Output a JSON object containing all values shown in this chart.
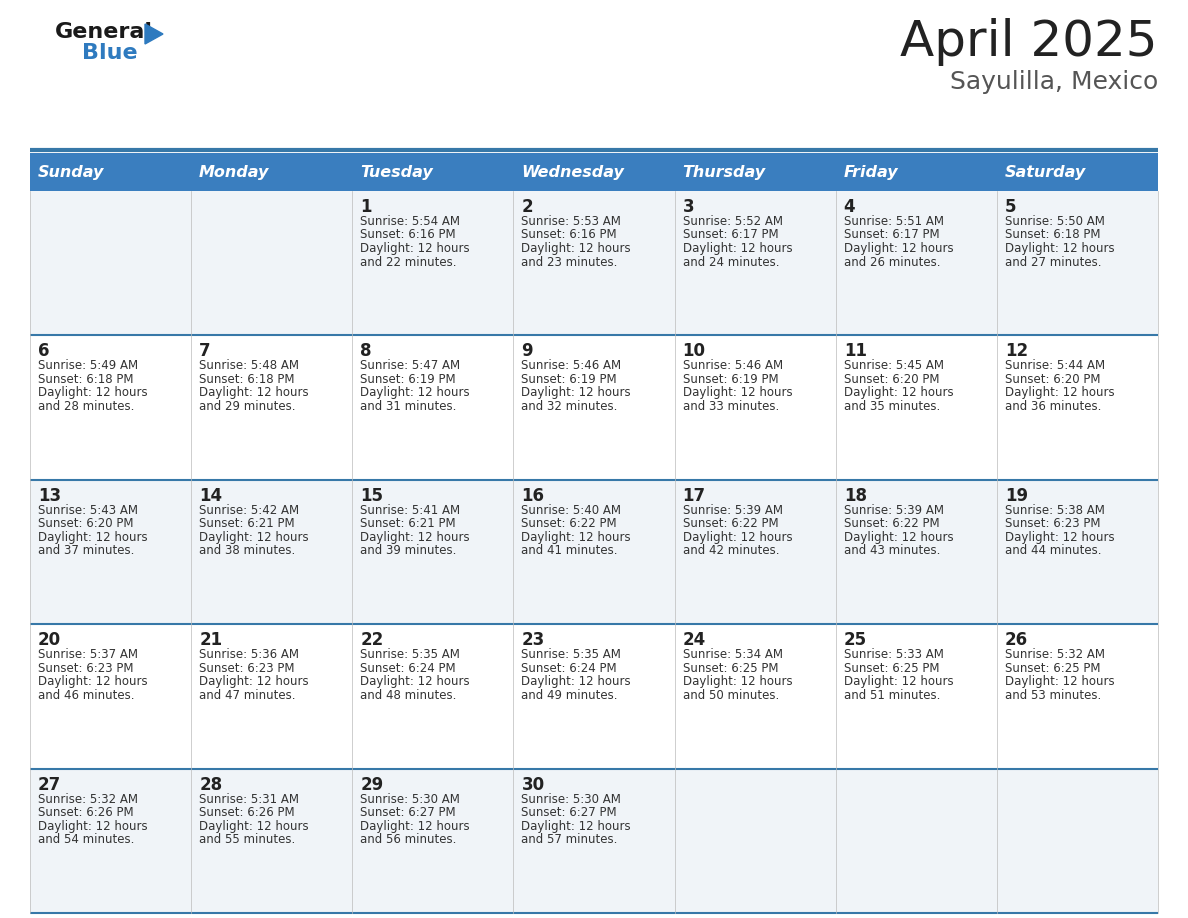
{
  "title": "April 2025",
  "subtitle": "Sayulilla, Mexico",
  "header_color": "#3a7ebf",
  "header_text_color": "#ffffff",
  "cell_bg_odd": "#f0f4f8",
  "cell_bg_even": "#ffffff",
  "separator_color": "#3778a8",
  "text_color": "#333333",
  "days_of_week": [
    "Sunday",
    "Monday",
    "Tuesday",
    "Wednesday",
    "Thursday",
    "Friday",
    "Saturday"
  ],
  "weeks": [
    [
      {
        "day": "",
        "sunrise": "",
        "sunset": "",
        "daylight_min": ""
      },
      {
        "day": "",
        "sunrise": "",
        "sunset": "",
        "daylight_min": ""
      },
      {
        "day": "1",
        "sunrise": "5:54 AM",
        "sunset": "6:16 PM",
        "daylight_min": "and 22 minutes."
      },
      {
        "day": "2",
        "sunrise": "5:53 AM",
        "sunset": "6:16 PM",
        "daylight_min": "and 23 minutes."
      },
      {
        "day": "3",
        "sunrise": "5:52 AM",
        "sunset": "6:17 PM",
        "daylight_min": "and 24 minutes."
      },
      {
        "day": "4",
        "sunrise": "5:51 AM",
        "sunset": "6:17 PM",
        "daylight_min": "and 26 minutes."
      },
      {
        "day": "5",
        "sunrise": "5:50 AM",
        "sunset": "6:18 PM",
        "daylight_min": "and 27 minutes."
      }
    ],
    [
      {
        "day": "6",
        "sunrise": "5:49 AM",
        "sunset": "6:18 PM",
        "daylight_min": "and 28 minutes."
      },
      {
        "day": "7",
        "sunrise": "5:48 AM",
        "sunset": "6:18 PM",
        "daylight_min": "and 29 minutes."
      },
      {
        "day": "8",
        "sunrise": "5:47 AM",
        "sunset": "6:19 PM",
        "daylight_min": "and 31 minutes."
      },
      {
        "day": "9",
        "sunrise": "5:46 AM",
        "sunset": "6:19 PM",
        "daylight_min": "and 32 minutes."
      },
      {
        "day": "10",
        "sunrise": "5:46 AM",
        "sunset": "6:19 PM",
        "daylight_min": "and 33 minutes."
      },
      {
        "day": "11",
        "sunrise": "5:45 AM",
        "sunset": "6:20 PM",
        "daylight_min": "and 35 minutes."
      },
      {
        "day": "12",
        "sunrise": "5:44 AM",
        "sunset": "6:20 PM",
        "daylight_min": "and 36 minutes."
      }
    ],
    [
      {
        "day": "13",
        "sunrise": "5:43 AM",
        "sunset": "6:20 PM",
        "daylight_min": "and 37 minutes."
      },
      {
        "day": "14",
        "sunrise": "5:42 AM",
        "sunset": "6:21 PM",
        "daylight_min": "and 38 minutes."
      },
      {
        "day": "15",
        "sunrise": "5:41 AM",
        "sunset": "6:21 PM",
        "daylight_min": "and 39 minutes."
      },
      {
        "day": "16",
        "sunrise": "5:40 AM",
        "sunset": "6:22 PM",
        "daylight_min": "and 41 minutes."
      },
      {
        "day": "17",
        "sunrise": "5:39 AM",
        "sunset": "6:22 PM",
        "daylight_min": "and 42 minutes."
      },
      {
        "day": "18",
        "sunrise": "5:39 AM",
        "sunset": "6:22 PM",
        "daylight_min": "and 43 minutes."
      },
      {
        "day": "19",
        "sunrise": "5:38 AM",
        "sunset": "6:23 PM",
        "daylight_min": "and 44 minutes."
      }
    ],
    [
      {
        "day": "20",
        "sunrise": "5:37 AM",
        "sunset": "6:23 PM",
        "daylight_min": "and 46 minutes."
      },
      {
        "day": "21",
        "sunrise": "5:36 AM",
        "sunset": "6:23 PM",
        "daylight_min": "and 47 minutes."
      },
      {
        "day": "22",
        "sunrise": "5:35 AM",
        "sunset": "6:24 PM",
        "daylight_min": "and 48 minutes."
      },
      {
        "day": "23",
        "sunrise": "5:35 AM",
        "sunset": "6:24 PM",
        "daylight_min": "and 49 minutes."
      },
      {
        "day": "24",
        "sunrise": "5:34 AM",
        "sunset": "6:25 PM",
        "daylight_min": "and 50 minutes."
      },
      {
        "day": "25",
        "sunrise": "5:33 AM",
        "sunset": "6:25 PM",
        "daylight_min": "and 51 minutes."
      },
      {
        "day": "26",
        "sunrise": "5:32 AM",
        "sunset": "6:25 PM",
        "daylight_min": "and 53 minutes."
      }
    ],
    [
      {
        "day": "27",
        "sunrise": "5:32 AM",
        "sunset": "6:26 PM",
        "daylight_min": "and 54 minutes."
      },
      {
        "day": "28",
        "sunrise": "5:31 AM",
        "sunset": "6:26 PM",
        "daylight_min": "and 55 minutes."
      },
      {
        "day": "29",
        "sunrise": "5:30 AM",
        "sunset": "6:27 PM",
        "daylight_min": "and 56 minutes."
      },
      {
        "day": "30",
        "sunrise": "5:30 AM",
        "sunset": "6:27 PM",
        "daylight_min": "and 57 minutes."
      },
      {
        "day": "",
        "sunrise": "",
        "sunset": "",
        "daylight_min": ""
      },
      {
        "day": "",
        "sunrise": "",
        "sunset": "",
        "daylight_min": ""
      },
      {
        "day": "",
        "sunrise": "",
        "sunset": "",
        "daylight_min": ""
      }
    ]
  ],
  "logo_triangle_color": "#2e7abf"
}
